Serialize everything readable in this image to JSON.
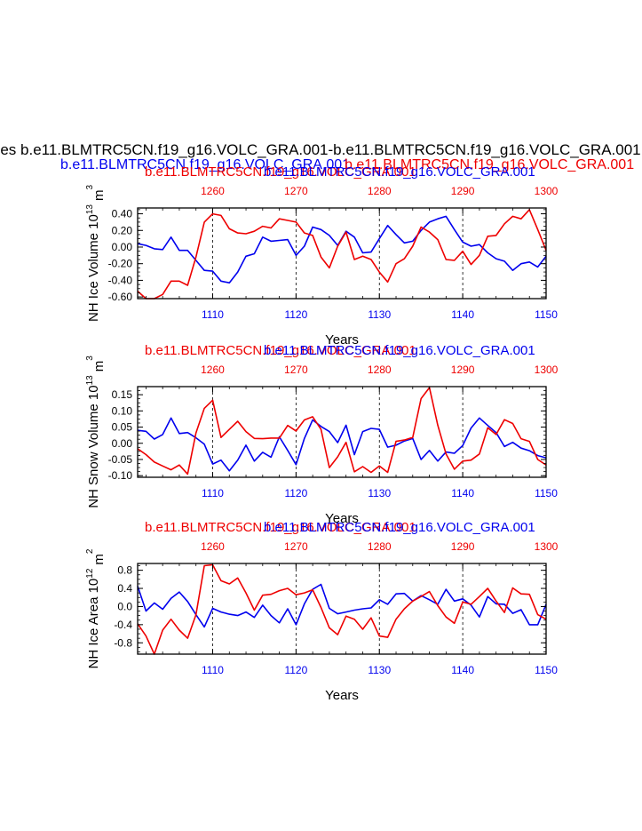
{
  "header": {
    "main_title": "es b.e11.BLMTRC5CN.f19_g16.VOLC_GRA.001-b.e11.BLMTRC5CN.f19_g16.VOLC_GRA.001",
    "left_title": "b.e11.BLMTRC5CN.f19_g16.VOLC_GRA.001",
    "right_title": "b.e11.BLMTRC5CN.f19_g16.VOLC_GRA.001"
  },
  "colors": {
    "blue": "#0000ee",
    "red": "#ee0000",
    "black": "#000000"
  },
  "chart_data": [
    {
      "type": "line",
      "title_red": "b.e11.BLMTRC5CN.f19_g16.VOLC_GRA.001",
      "title_blue": "b.e11.BLMTRC5CN.f19_g16.VOLC_GRA.001",
      "xlabel": "Years",
      "ylabel": "NH Ice Volume 10",
      "ylabel_sup": "13",
      "ylabel_unit": "m",
      "ylabel_unit_sup": "3",
      "xlim": [
        1101,
        1150
      ],
      "xlim_top": [
        1251,
        1300
      ],
      "ylim": [
        -0.62,
        0.47
      ],
      "yticks": [
        0.4,
        0.2,
        0.0,
        -0.2,
        -0.4,
        -0.6
      ],
      "ytick_labels": [
        "0.40",
        "0.20",
        "0.00",
        "-0.20",
        "-0.40",
        "-0.60"
      ],
      "xticks": [
        1110,
        1120,
        1130,
        1140,
        1150
      ],
      "xtick_labels": [
        "1110",
        "1120",
        "1130",
        "1140",
        "1150"
      ],
      "xticks_top": [
        1260,
        1270,
        1280,
        1290,
        1300
      ],
      "xtick_labels_top": [
        "1260",
        "1270",
        "1280",
        "1290",
        "1300"
      ],
      "series": [
        {
          "name": "blue",
          "color": "#0000ee",
          "values": [
            0.04,
            0.02,
            -0.02,
            -0.03,
            0.12,
            -0.04,
            -0.04,
            -0.16,
            -0.28,
            -0.29,
            -0.41,
            -0.43,
            -0.3,
            -0.11,
            -0.08,
            0.12,
            0.07,
            0.08,
            0.09,
            -0.1,
            0.01,
            0.24,
            0.21,
            0.14,
            0.02,
            0.19,
            0.12,
            -0.07,
            -0.06,
            0.1,
            0.26,
            0.15,
            0.05,
            0.07,
            0.2,
            0.3,
            0.34,
            0.37,
            0.21,
            0.06,
            0.01,
            0.03,
            -0.07,
            -0.14,
            -0.17,
            -0.28,
            -0.2,
            -0.18,
            -0.24,
            -0.11
          ]
        },
        {
          "name": "red",
          "color": "#ee0000",
          "values": [
            -0.53,
            -0.62,
            -0.63,
            -0.57,
            -0.41,
            -0.41,
            -0.46,
            -0.12,
            0.3,
            0.4,
            0.38,
            0.22,
            0.17,
            0.16,
            0.19,
            0.25,
            0.23,
            0.34,
            0.32,
            0.3,
            0.17,
            0.14,
            -0.12,
            -0.25,
            0.01,
            0.18,
            -0.15,
            -0.11,
            -0.15,
            -0.3,
            -0.42,
            -0.2,
            -0.14,
            0.01,
            0.24,
            0.18,
            0.09,
            -0.15,
            -0.16,
            -0.05,
            -0.21,
            -0.1,
            0.13,
            0.14,
            0.28,
            0.37,
            0.34,
            0.45,
            0.21,
            -0.04
          ]
        }
      ]
    },
    {
      "type": "line",
      "title_red": "b.e11.BLMTRC5CN.f19_g16.VOLC_GRA.001",
      "title_blue": "b.e11.BLMTRC5CN.f19_g16.VOLC_GRA.001",
      "xlabel": "Years",
      "ylabel": "NH Snow Volume 10",
      "ylabel_sup": "13",
      "ylabel_unit": "m",
      "ylabel_unit_sup": "3",
      "xlim": [
        1101,
        1150
      ],
      "xlim_top": [
        1251,
        1300
      ],
      "ylim": [
        -0.105,
        0.175
      ],
      "yticks": [
        0.15,
        0.1,
        0.05,
        0.0,
        -0.05,
        -0.1
      ],
      "ytick_labels": [
        "0.15",
        "0.10",
        "0.05",
        "0.00",
        "-0.05",
        "-0.10"
      ],
      "xticks": [
        1110,
        1120,
        1130,
        1140,
        1150
      ],
      "xtick_labels": [
        "1110",
        "1120",
        "1130",
        "1140",
        "1150"
      ],
      "xticks_top": [
        1260,
        1270,
        1280,
        1290,
        1300
      ],
      "xtick_labels_top": [
        "1260",
        "1270",
        "1280",
        "1290",
        "1300"
      ],
      "series": [
        {
          "name": "blue",
          "color": "#0000ee",
          "values": [
            0.04,
            0.037,
            0.013,
            0.027,
            0.078,
            0.03,
            0.033,
            0.017,
            -0.003,
            -0.064,
            -0.052,
            -0.085,
            -0.052,
            -0.006,
            -0.055,
            -0.028,
            -0.043,
            0.02,
            -0.022,
            -0.066,
            0.015,
            0.072,
            0.052,
            0.036,
            0.002,
            0.056,
            -0.035,
            0.036,
            0.046,
            0.043,
            -0.012,
            -0.006,
            0.007,
            0.015,
            -0.05,
            -0.022,
            -0.055,
            -0.027,
            -0.031,
            -0.007,
            0.047,
            0.078,
            0.055,
            0.033,
            -0.01,
            0.003,
            -0.015,
            -0.023,
            -0.038,
            -0.045
          ]
        },
        {
          "name": "red",
          "color": "#ee0000",
          "values": [
            -0.017,
            -0.035,
            -0.058,
            -0.07,
            -0.082,
            -0.067,
            -0.095,
            0.032,
            0.108,
            0.133,
            0.018,
            0.043,
            0.068,
            0.036,
            0.015,
            0.014,
            0.016,
            0.016,
            0.055,
            0.038,
            0.072,
            0.082,
            0.043,
            -0.075,
            -0.042,
            0.003,
            -0.088,
            -0.072,
            -0.09,
            -0.07,
            -0.09,
            0.006,
            0.01,
            0.018,
            0.138,
            0.172,
            0.056,
            -0.033,
            -0.08,
            -0.055,
            -0.052,
            -0.033,
            0.048,
            0.027,
            0.073,
            0.061,
            0.014,
            0.006,
            -0.05,
            -0.067
          ]
        }
      ]
    },
    {
      "type": "line",
      "title_red": "b.e11.BLMTRC5CN.f19_g16.VOLC_GRA.001",
      "title_blue": "b.e11.BLMTRC5CN.f19_g16.VOLC_GRA.001",
      "xlabel": "Years",
      "ylabel": "NH Ice Area 10",
      "ylabel_sup": "12",
      "ylabel_unit": "m",
      "ylabel_unit_sup": "2",
      "xlim": [
        1101,
        1150
      ],
      "xlim_top": [
        1251,
        1300
      ],
      "ylim": [
        -1.05,
        0.95
      ],
      "yticks": [
        0.8,
        0.4,
        0.0,
        -0.4,
        -0.8
      ],
      "ytick_labels": [
        "0.8",
        "0.4",
        "0.0",
        "-0.4",
        "-0.8"
      ],
      "xticks": [
        1110,
        1120,
        1130,
        1140,
        1150
      ],
      "xtick_labels": [
        "1110",
        "1120",
        "1130",
        "1140",
        "1150"
      ],
      "xticks_top": [
        1260,
        1270,
        1280,
        1290,
        1300
      ],
      "xtick_labels_top": [
        "1260",
        "1270",
        "1280",
        "1290",
        "1300"
      ],
      "series": [
        {
          "name": "blue",
          "color": "#0000ee",
          "values": [
            0.45,
            -0.1,
            0.08,
            -0.06,
            0.18,
            0.32,
            0.11,
            -0.18,
            -0.45,
            -0.04,
            -0.12,
            -0.17,
            -0.2,
            -0.12,
            -0.24,
            0.03,
            -0.2,
            -0.36,
            -0.05,
            -0.4,
            0.06,
            0.38,
            0.49,
            -0.04,
            -0.16,
            -0.12,
            -0.08,
            -0.05,
            -0.03,
            0.15,
            0.05,
            0.28,
            0.29,
            0.12,
            0.24,
            0.15,
            0.05,
            0.38,
            0.12,
            0.17,
            0.03,
            -0.23,
            0.22,
            0.06,
            0.05,
            -0.15,
            -0.07,
            -0.4,
            -0.4,
            0.05
          ]
        },
        {
          "name": "red",
          "color": "#ee0000",
          "values": [
            -0.38,
            -0.65,
            -1.05,
            -0.52,
            -0.28,
            -0.52,
            -0.7,
            -0.18,
            0.9,
            0.92,
            0.57,
            0.5,
            0.63,
            0.3,
            -0.08,
            0.25,
            0.27,
            0.35,
            0.4,
            0.26,
            0.3,
            0.37,
            -0.02,
            -0.47,
            -0.62,
            -0.21,
            -0.28,
            -0.5,
            -0.25,
            -0.65,
            -0.68,
            -0.28,
            -0.05,
            0.12,
            0.22,
            0.33,
            0.02,
            -0.23,
            -0.37,
            0.1,
            0.05,
            0.22,
            0.4,
            0.12,
            -0.13,
            0.41,
            0.28,
            0.27,
            -0.18,
            -0.28
          ]
        }
      ]
    }
  ]
}
